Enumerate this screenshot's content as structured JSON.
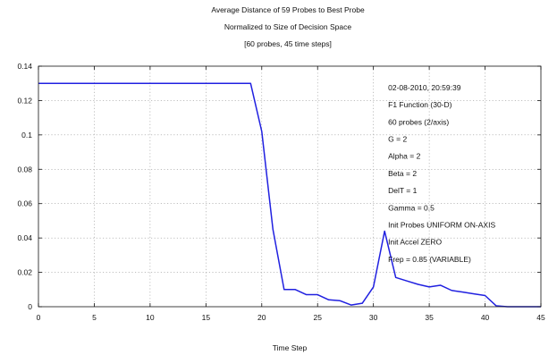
{
  "chart_data": {
    "type": "line",
    "title": "Average Distance of 59 Probes to Best Probe",
    "subtitle_lines": [
      "Normalized to Size of Decision Space",
      "[60 probes, 45 time steps]"
    ],
    "xlabel": "Time Step",
    "ylabel": "",
    "xlim": [
      0,
      45
    ],
    "ylim": [
      0,
      0.14
    ],
    "x_ticks": [
      "0",
      "5",
      "10",
      "15",
      "20",
      "25",
      "30",
      "35",
      "40",
      "45"
    ],
    "y_ticks": [
      "0",
      "0.02",
      "0.04",
      "0.06",
      "0.08",
      "0.1",
      "0.12",
      "0.14"
    ],
    "grid": true,
    "series": [
      {
        "color": "#2020e0",
        "x": [
          0,
          1,
          2,
          3,
          4,
          5,
          6,
          7,
          8,
          9,
          10,
          11,
          12,
          13,
          14,
          15,
          16,
          17,
          18,
          19,
          20,
          21,
          22,
          23,
          24,
          25,
          26,
          27,
          28,
          29,
          30,
          31,
          32,
          33,
          34,
          35,
          36,
          37,
          38,
          39,
          40,
          41,
          42,
          43,
          44,
          45
        ],
        "y": [
          0.13,
          0.13,
          0.13,
          0.13,
          0.13,
          0.13,
          0.13,
          0.13,
          0.13,
          0.13,
          0.13,
          0.13,
          0.13,
          0.13,
          0.13,
          0.13,
          0.13,
          0.13,
          0.13,
          0.13,
          0.102,
          0.045,
          0.01,
          0.01,
          0.007,
          0.007,
          0.004,
          0.0035,
          0.001,
          0.002,
          0.0115,
          0.044,
          0.017,
          0.015,
          0.013,
          0.0115,
          0.0125,
          0.0095,
          0.0085,
          0.0075,
          0.0065,
          0.0005,
          0.0,
          0.0,
          0.0,
          0.0
        ]
      }
    ],
    "annotations": [
      "02-08-2010, 20:59:39",
      "F1 Function (30-D)",
      "60 probes (2/axis)",
      "G = 2",
      "Alpha = 2",
      "Beta = 2",
      "DelT = 1",
      "Gamma = 0.5",
      "Init Probes UNIFORM ON-AXIS",
      "Init Accel ZERO",
      "Frep = 0.85 (VARIABLE)"
    ],
    "annotation_anchor": {
      "x": 31,
      "y": 0.126
    }
  }
}
